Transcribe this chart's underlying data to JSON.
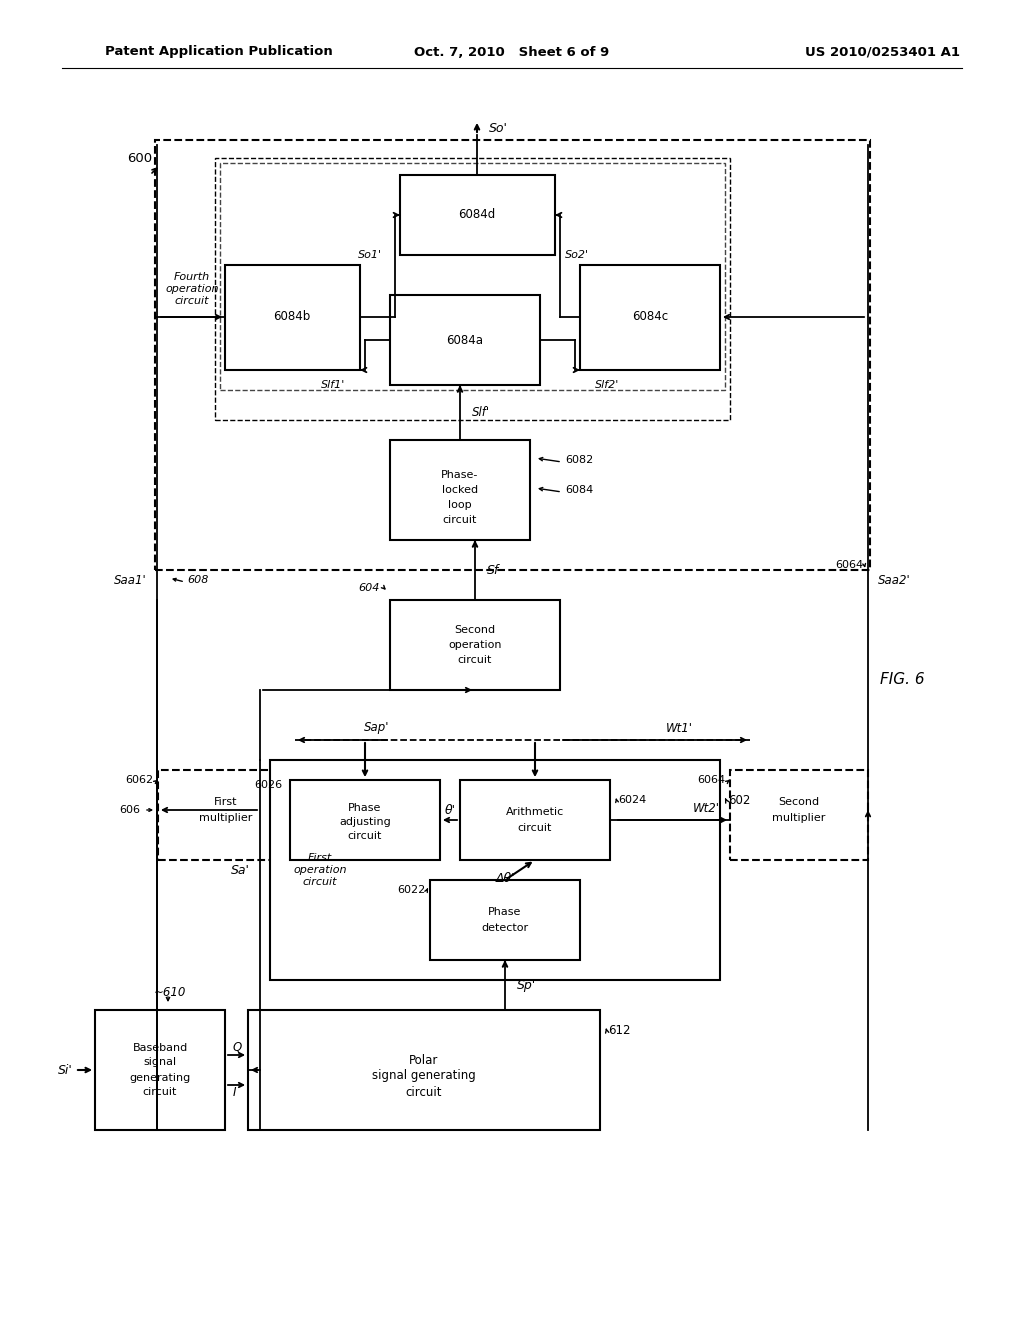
{
  "title_left": "Patent Application Publication",
  "title_center": "Oct. 7, 2010   Sheet 6 of 9",
  "title_right": "US 2010/0253401 A1",
  "background": "#ffffff"
}
